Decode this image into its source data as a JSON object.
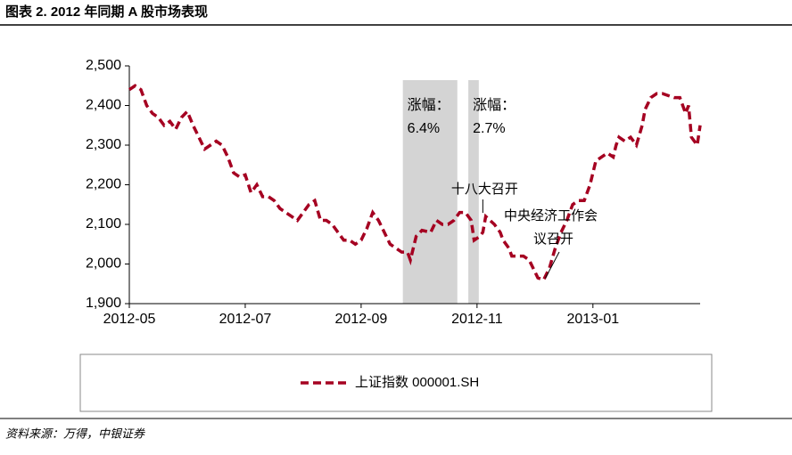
{
  "chart_data": {
    "type": "line",
    "title": "图表 2. 2012 年同期 A 股市场表现",
    "source": "资料来源：万得，中银证券",
    "x": [
      0,
      0.1,
      0.2,
      0.3,
      0.4,
      0.5,
      0.6,
      0.7,
      0.8,
      0.9,
      1.0,
      1.1,
      1.2,
      1.3,
      1.4,
      1.5,
      1.6,
      1.7,
      1.8,
      1.9,
      2.0,
      2.1,
      2.2,
      2.3,
      2.4,
      2.5,
      2.6,
      2.7,
      2.8,
      2.9,
      3.0,
      3.1,
      3.2,
      3.3,
      3.4,
      3.5,
      3.6,
      3.7,
      3.8,
      3.9,
      4.0,
      4.1,
      4.2,
      4.3,
      4.4,
      4.5,
      4.6,
      4.7,
      4.8,
      4.85,
      4.95,
      5.05,
      5.2,
      5.3,
      5.4,
      5.5,
      5.6,
      5.7,
      5.8,
      5.9,
      5.95,
      6.05,
      6.1,
      6.15,
      6.3,
      6.4,
      6.45,
      6.55,
      6.6,
      6.8,
      6.9,
      7.0,
      7.05,
      7.15,
      7.25,
      7.35,
      7.45,
      7.55,
      7.65,
      7.75,
      7.85,
      7.95,
      8.05,
      8.15,
      8.25,
      8.35,
      8.4,
      8.45,
      8.55,
      8.65,
      8.75,
      8.85,
      8.9,
      9.0,
      9.1,
      9.2,
      9.3,
      9.4,
      9.5,
      9.6,
      9.65,
      9.7,
      9.8,
      9.85
    ],
    "series": [
      {
        "name": "上证指数 000001.SH",
        "color": "#a50021",
        "values": [
          2440,
          2450,
          2440,
          2400,
          2380,
          2370,
          2350,
          2360,
          2340,
          2370,
          2385,
          2350,
          2320,
          2290,
          2300,
          2310,
          2300,
          2270,
          2230,
          2220,
          2225,
          2180,
          2200,
          2170,
          2170,
          2160,
          2140,
          2130,
          2120,
          2110,
          2130,
          2150,
          2160,
          2110,
          2110,
          2100,
          2080,
          2060,
          2060,
          2050,
          2060,
          2090,
          2130,
          2110,
          2080,
          2050,
          2040,
          2030,
          2030,
          2010,
          2070,
          2085,
          2080,
          2110,
          2100,
          2100,
          2110,
          2130,
          2130,
          2110,
          2060,
          2070,
          2080,
          2120,
          2100,
          2080,
          2060,
          2040,
          2020,
          2020,
          2010,
          1980,
          1965,
          1960,
          1990,
          2040,
          2080,
          2110,
          2150,
          2160,
          2160,
          2200,
          2260,
          2270,
          2280,
          2270,
          2300,
          2320,
          2310,
          2320,
          2300,
          2350,
          2390,
          2420,
          2430,
          2430,
          2425,
          2420,
          2420,
          2380,
          2400,
          2320,
          2300,
          2350
        ]
      }
    ],
    "xlim": [
      0,
      9.85
    ],
    "xticks": [
      {
        "value": 0,
        "label": "2012-05"
      },
      {
        "value": 2,
        "label": "2012-07"
      },
      {
        "value": 4,
        "label": "2012-09"
      },
      {
        "value": 6,
        "label": "2012-11"
      },
      {
        "value": 8,
        "label": "2013-01"
      }
    ],
    "ylim": [
      1900,
      2500
    ],
    "yticks": [
      {
        "value": 1900,
        "label": "1,900"
      },
      {
        "value": 2000,
        "label": "2,000"
      },
      {
        "value": 2100,
        "label": "2,100"
      },
      {
        "value": 2200,
        "label": "2,200"
      },
      {
        "value": 2300,
        "label": "2,300"
      },
      {
        "value": 2400,
        "label": "2,400"
      },
      {
        "value": 2500,
        "label": "2,500"
      }
    ],
    "shaded_ranges": [
      {
        "start": 4.72,
        "end": 5.66,
        "label": "涨幅：",
        "value": 6.4,
        "value_label": "6.4%"
      },
      {
        "start": 5.85,
        "end": 6.03,
        "label": "涨幅：",
        "value": 2.7,
        "value_label": "2.7%"
      }
    ],
    "annotations": [
      {
        "text": "十八大召开",
        "x": 6.1,
        "y": 2120
      },
      {
        "text": "中央经济工作会",
        "text2": "议召开",
        "x": 7.15,
        "y": 1960
      }
    ],
    "legend": "bottom"
  }
}
